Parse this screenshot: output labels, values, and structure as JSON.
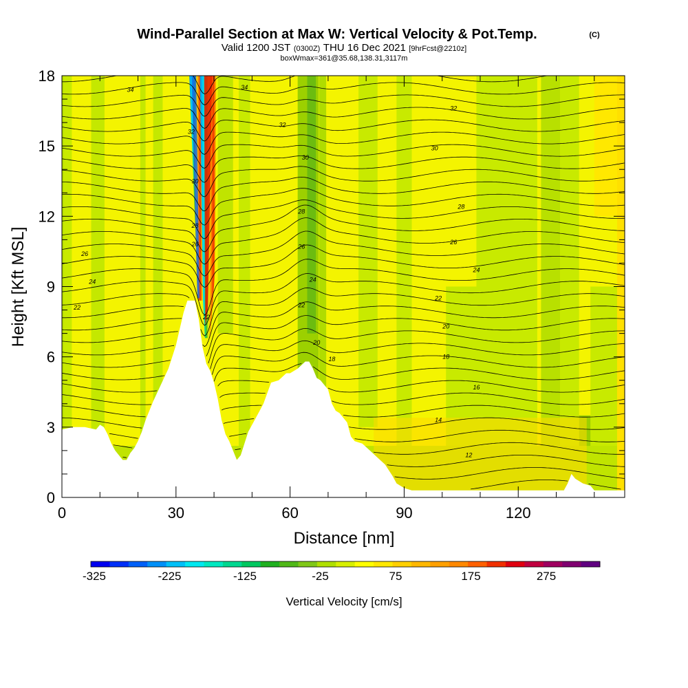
{
  "header": {
    "title_main": "Wind-Parallel Section at Max W: Vertical Velocity & Pot.Temp.",
    "title_mark": "(C)",
    "valid_a": "Valid 1200 JST",
    "valid_b": "(0300Z)",
    "valid_c": "THU 16 Dec 2021",
    "valid_d": "[9hrFcst@2210z]",
    "box_line": "boxWmax=361@35.68,138.31,3117m"
  },
  "chart_data": {
    "type": "heatmap",
    "xlabel": "Distance [nm]",
    "ylabel": "Height [Kft MSL]",
    "xlim": [
      0,
      148
    ],
    "ylim": [
      0,
      18
    ],
    "x_ticks": [
      "0",
      "30",
      "60",
      "90",
      "120"
    ],
    "y_ticks": [
      "0",
      "3",
      "6",
      "9",
      "12",
      "15",
      "18"
    ],
    "colorbar": {
      "label": "Vertical Velocity [cm/s]",
      "tick_labels": [
        "-325",
        "-225",
        "-125",
        "-25",
        "75",
        "175",
        "275"
      ],
      "colors": [
        "#0000f0",
        "#0030f8",
        "#0060f8",
        "#0090f8",
        "#00c0f8",
        "#00e8f0",
        "#00e8c0",
        "#00d890",
        "#00c860",
        "#20b020",
        "#50b818",
        "#80c818",
        "#b0e000",
        "#d8f000",
        "#ffff00",
        "#ffe800",
        "#ffd000",
        "#ffb800",
        "#ffa000",
        "#ff8800",
        "#ff6000",
        "#f03000",
        "#e00010",
        "#c00040",
        "#a00060",
        "#800070",
        "#600080"
      ]
    },
    "contours": {
      "variable": "Pot.Temp.",
      "labels": [
        {
          "text": "34",
          "x": 18,
          "y": 17.4
        },
        {
          "text": "34",
          "x": 48,
          "y": 17.5
        },
        {
          "text": "32",
          "x": 103,
          "y": 16.6
        },
        {
          "text": "32",
          "x": 58,
          "y": 15.9
        },
        {
          "text": "32",
          "x": 34,
          "y": 15.6
        },
        {
          "text": "30",
          "x": 98,
          "y": 14.9
        },
        {
          "text": "30",
          "x": 64,
          "y": 14.5
        },
        {
          "text": "30",
          "x": 35,
          "y": 13.5
        },
        {
          "text": "28",
          "x": 105,
          "y": 12.4
        },
        {
          "text": "28",
          "x": 63,
          "y": 12.2
        },
        {
          "text": "28",
          "x": 35,
          "y": 11.6
        },
        {
          "text": "26",
          "x": 103,
          "y": 10.9
        },
        {
          "text": "26",
          "x": 63,
          "y": 10.7
        },
        {
          "text": "26",
          "x": 35,
          "y": 10.8
        },
        {
          "text": "26",
          "x": 6,
          "y": 10.4
        },
        {
          "text": "24",
          "x": 109,
          "y": 9.7
        },
        {
          "text": "24",
          "x": 66,
          "y": 9.3
        },
        {
          "text": "24",
          "x": 8,
          "y": 9.2
        },
        {
          "text": "22",
          "x": 99,
          "y": 8.5
        },
        {
          "text": "22",
          "x": 63,
          "y": 8.2
        },
        {
          "text": "22",
          "x": 4,
          "y": 8.1
        },
        {
          "text": "22",
          "x": 38,
          "y": 7.7
        },
        {
          "text": "20",
          "x": 101,
          "y": 7.3
        },
        {
          "text": "20",
          "x": 67,
          "y": 6.6
        },
        {
          "text": "18",
          "x": 101,
          "y": 6.0
        },
        {
          "text": "18",
          "x": 71,
          "y": 5.9
        },
        {
          "text": "16",
          "x": 109,
          "y": 4.7
        },
        {
          "text": "14",
          "x": 99,
          "y": 3.3
        },
        {
          "text": "12",
          "x": 107,
          "y": 1.8
        }
      ]
    },
    "terrain": [
      [
        0,
        2.9
      ],
      [
        3,
        3.0
      ],
      [
        6,
        3.0
      ],
      [
        9,
        2.9
      ],
      [
        10,
        3.1
      ],
      [
        11,
        3.0
      ],
      [
        12,
        2.7
      ],
      [
        13,
        2.3
      ],
      [
        14,
        2.0
      ],
      [
        15,
        1.8
      ],
      [
        16,
        1.6
      ],
      [
        17,
        1.6
      ],
      [
        18,
        1.9
      ],
      [
        19,
        2.1
      ],
      [
        20,
        2.4
      ],
      [
        21,
        2.8
      ],
      [
        22,
        3.3
      ],
      [
        24,
        4.1
      ],
      [
        26,
        4.8
      ],
      [
        28,
        5.5
      ],
      [
        29,
        6.0
      ],
      [
        30,
        6.5
      ],
      [
        31,
        7.2
      ],
      [
        32,
        7.9
      ],
      [
        33,
        8.4
      ],
      [
        34,
        8.4
      ],
      [
        35,
        8.4
      ],
      [
        36,
        7.6
      ],
      [
        37,
        6.4
      ],
      [
        38,
        5.7
      ],
      [
        39,
        5.4
      ],
      [
        40,
        4.9
      ],
      [
        41,
        4.2
      ],
      [
        42,
        3.3
      ],
      [
        43,
        2.7
      ],
      [
        44,
        2.4
      ],
      [
        45,
        2.0
      ],
      [
        46,
        1.6
      ],
      [
        47,
        1.8
      ],
      [
        48,
        2.3
      ],
      [
        49,
        2.8
      ],
      [
        51,
        3.4
      ],
      [
        53,
        4.0
      ],
      [
        55,
        4.9
      ],
      [
        57,
        5.0
      ],
      [
        59,
        5.3
      ],
      [
        60,
        5.3
      ],
      [
        62,
        5.5
      ],
      [
        64,
        5.8
      ],
      [
        65,
        5.8
      ],
      [
        66,
        5.5
      ],
      [
        67,
        5.1
      ],
      [
        68,
        5.0
      ],
      [
        70,
        4.6
      ],
      [
        71,
        4.0
      ],
      [
        72,
        3.7
      ],
      [
        73,
        3.6
      ],
      [
        74,
        3.4
      ],
      [
        75,
        3.2
      ],
      [
        76,
        2.6
      ],
      [
        77,
        2.4
      ],
      [
        79,
        2.3
      ],
      [
        81,
        2.0
      ],
      [
        83,
        1.7
      ],
      [
        85,
        1.4
      ],
      [
        87,
        0.9
      ],
      [
        88,
        0.6
      ],
      [
        89,
        0.5
      ],
      [
        90,
        0.4
      ],
      [
        92,
        0.3
      ],
      [
        95,
        0.3
      ],
      [
        100,
        0.3
      ],
      [
        110,
        0.3
      ],
      [
        120,
        0.3
      ],
      [
        132,
        0.3
      ],
      [
        133,
        0.6
      ],
      [
        134,
        1.0
      ],
      [
        135,
        0.8
      ],
      [
        137,
        0.6
      ],
      [
        139,
        0.5
      ],
      [
        140,
        0.3
      ],
      [
        148,
        0.3
      ]
    ]
  }
}
